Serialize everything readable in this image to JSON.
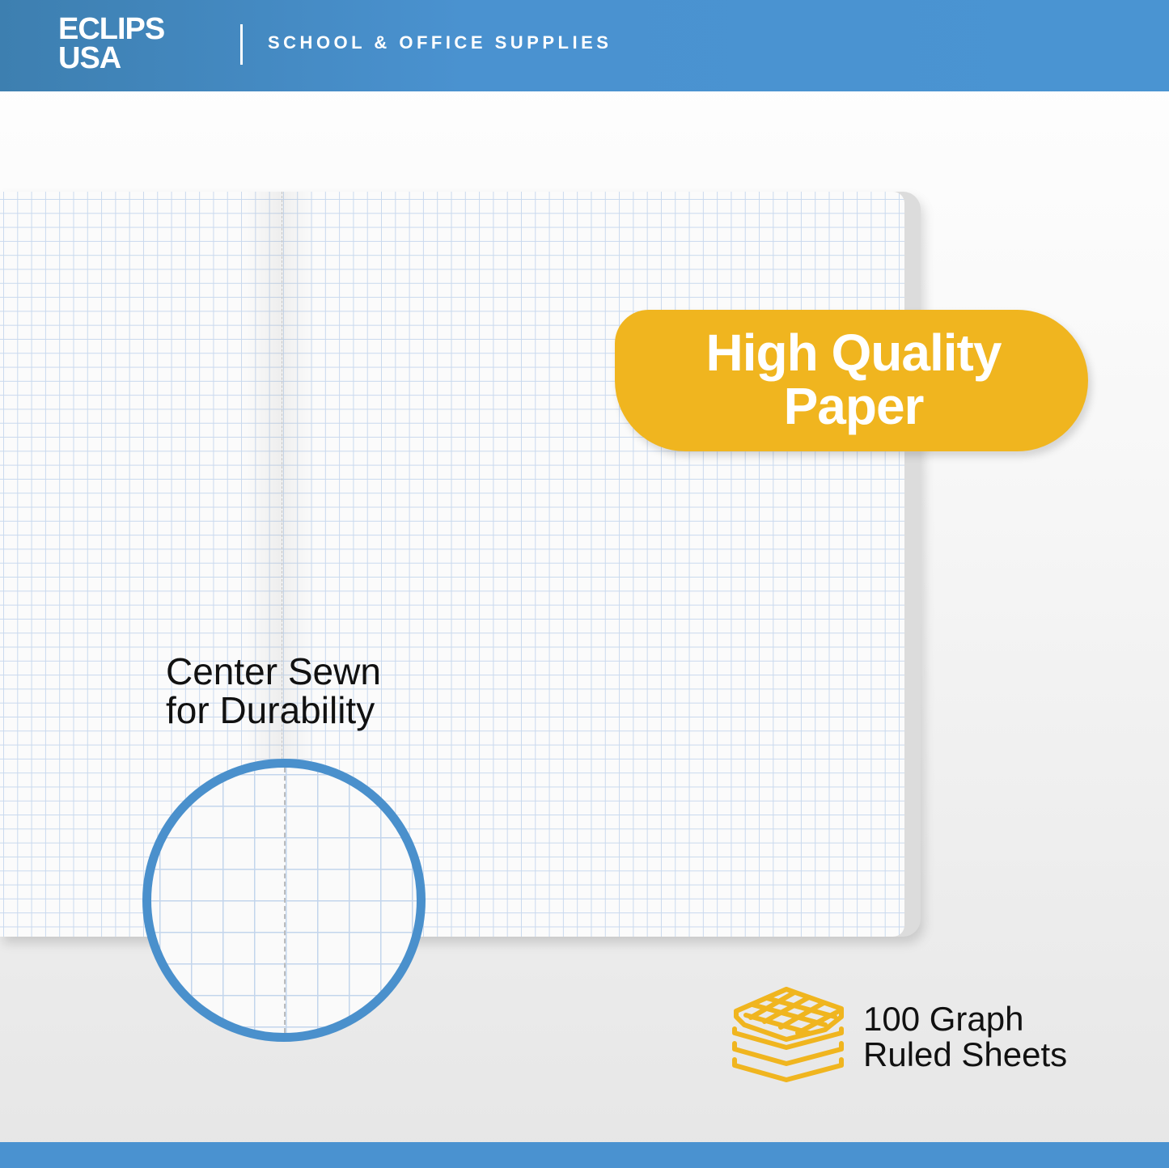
{
  "header": {
    "logo": {
      "line1": "ECLIPS",
      "line2": "USA"
    },
    "tagline": "SCHOOL & OFFICE SUPPLIES"
  },
  "badge": {
    "line1": "High Quality",
    "line2": "Paper"
  },
  "feature_sewn": {
    "line1": "Center Sewn",
    "line2": "for Durability"
  },
  "feature_sheets": {
    "line1": "100 Graph",
    "line2": "Ruled Sheets",
    "icon": "stacked-graph-paper-icon"
  },
  "colors": {
    "brand_blue": "#4a92d0",
    "accent_yellow": "#f0b51f",
    "grid_line": "#c9d9ee"
  }
}
